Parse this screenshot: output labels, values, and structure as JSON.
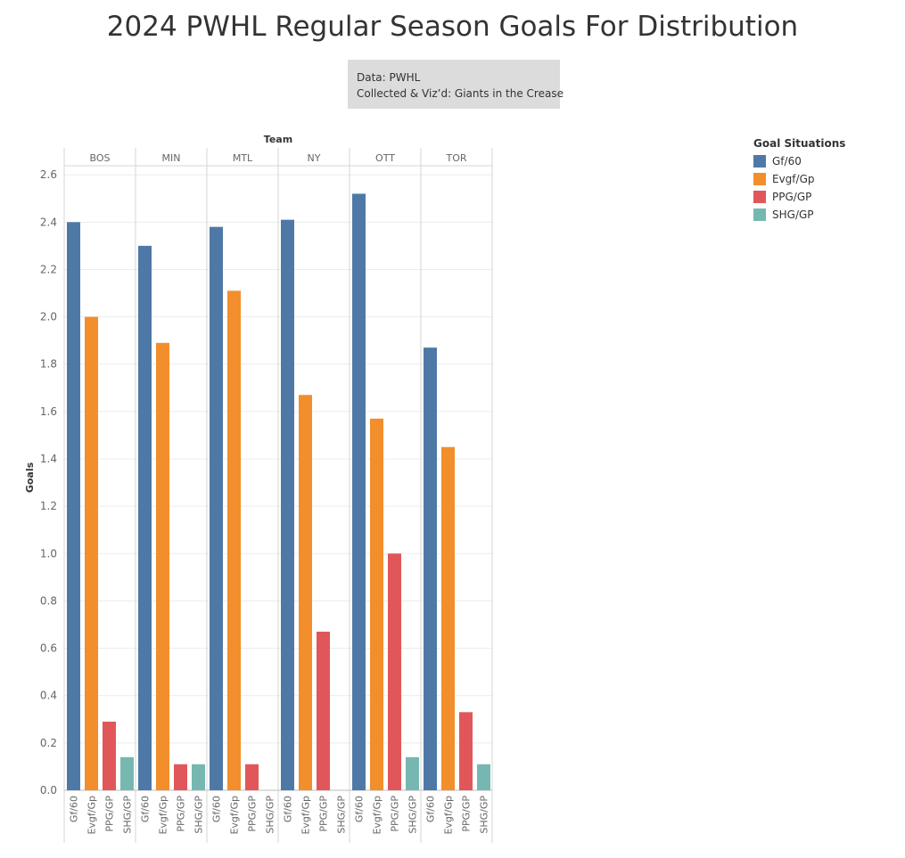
{
  "title": "2024 PWHL Regular Season Goals For Distribution",
  "caption": {
    "line1": "Data: PWHL",
    "line2": "Collected & Viz’d: Giants in the Crease"
  },
  "legend": {
    "title": "Goal Situations",
    "items": [
      {
        "label": "Gf/60",
        "color": "#4e79a7"
      },
      {
        "label": "Evgf/Gp",
        "color": "#f28e2b"
      },
      {
        "label": "PPG/GP",
        "color": "#e15759"
      },
      {
        "label": "SHG/GP",
        "color": "#76b7b2"
      }
    ]
  },
  "chart_data": {
    "type": "bar",
    "title": "2024 PWHL Regular Season Goals For Distribution",
    "xlabel": "Team",
    "ylabel": "Goals",
    "ylim": [
      0,
      2.65
    ],
    "yticks": [
      "0.0",
      "0.2",
      "0.4",
      "0.6",
      "0.8",
      "1.0",
      "1.2",
      "1.4",
      "1.6",
      "1.8",
      "2.0",
      "2.2",
      "2.4",
      "2.6"
    ],
    "grid": true,
    "legend_placement": "top-right",
    "categories": [
      "Gf/60",
      "Evgf/Gp",
      "PPG/GP",
      "SHG/GP"
    ],
    "series": [
      {
        "name": "BOS",
        "values": [
          2.4,
          2.0,
          0.29,
          0.14
        ]
      },
      {
        "name": "MIN",
        "values": [
          2.3,
          1.89,
          0.11,
          0.11
        ]
      },
      {
        "name": "MTL",
        "values": [
          2.38,
          2.11,
          0.11,
          0
        ]
      },
      {
        "name": "NY",
        "values": [
          2.41,
          1.67,
          0.67,
          0
        ]
      },
      {
        "name": "OTT",
        "values": [
          2.52,
          1.57,
          1.0,
          0.14
        ]
      },
      {
        "name": "TOR",
        "values": [
          1.87,
          1.45,
          0.33,
          0.11
        ]
      }
    ]
  }
}
